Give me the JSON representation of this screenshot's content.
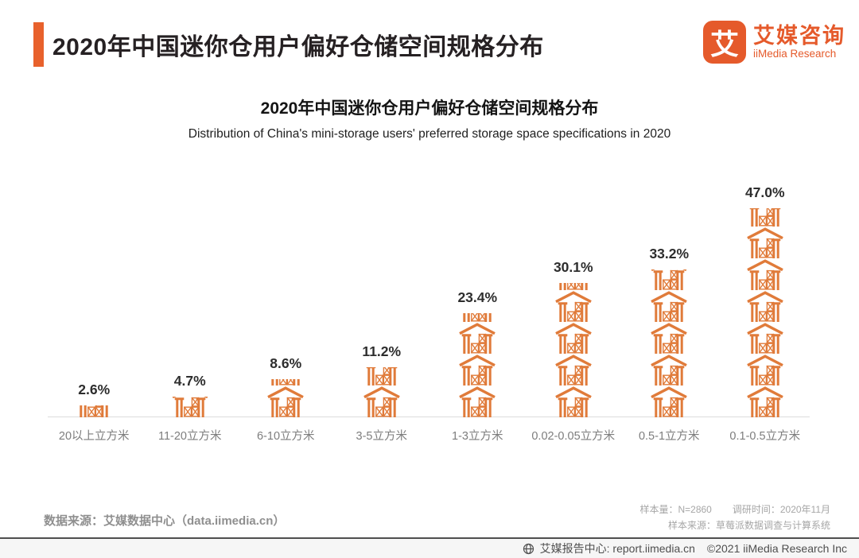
{
  "header": {
    "title": "2020年中国迷你仓用户偏好仓储空间规格分布",
    "logo": {
      "mark": "艾",
      "name_cn": "艾媒咨询",
      "name_en": "iiMedia Research"
    }
  },
  "chart_data": {
    "type": "bar",
    "style": "pictogram",
    "icon": "warehouse-icon",
    "title": "2020年中国迷你仓用户偏好仓储空间规格分布",
    "subtitle": "Distribution of China's mini-storage users' preferred storage space specifications in 2020",
    "categories": [
      "20以上立方米",
      "11-20立方米",
      "6-10立方米",
      "3-5立方米",
      "1-3立方米",
      "0.02-0.05立方米",
      "0.5-1立方米",
      "0.1-0.5立方米"
    ],
    "values": [
      2.6,
      4.7,
      8.6,
      11.2,
      23.4,
      30.1,
      33.2,
      47.0
    ],
    "unit": "%",
    "xlabel": "",
    "ylabel": "",
    "ylim": [
      0,
      50
    ],
    "grid": false,
    "legend": false,
    "accent_color": "#E07B3A",
    "value_label_position": "above bars"
  },
  "footer": {
    "source_left": "数据来源：艾媒数据中心（data.iimedia.cn）",
    "sample_size": "样本量：N=2860",
    "survey_time": "调研时间：2020年11月",
    "sample_source": "样本来源：草莓派数据调查与计算系统",
    "report_center": "艾媒报告中心: report.iimedia.cn",
    "copyright": "©2021  iiMedia Research Inc"
  },
  "colors": {
    "accent_orange": "#E8612C",
    "logo_orange": "#E55A2B",
    "icon_orange": "#E07B3A",
    "axis_gray": "#7d7d7d",
    "baseline_gray": "#dcdcdc"
  }
}
